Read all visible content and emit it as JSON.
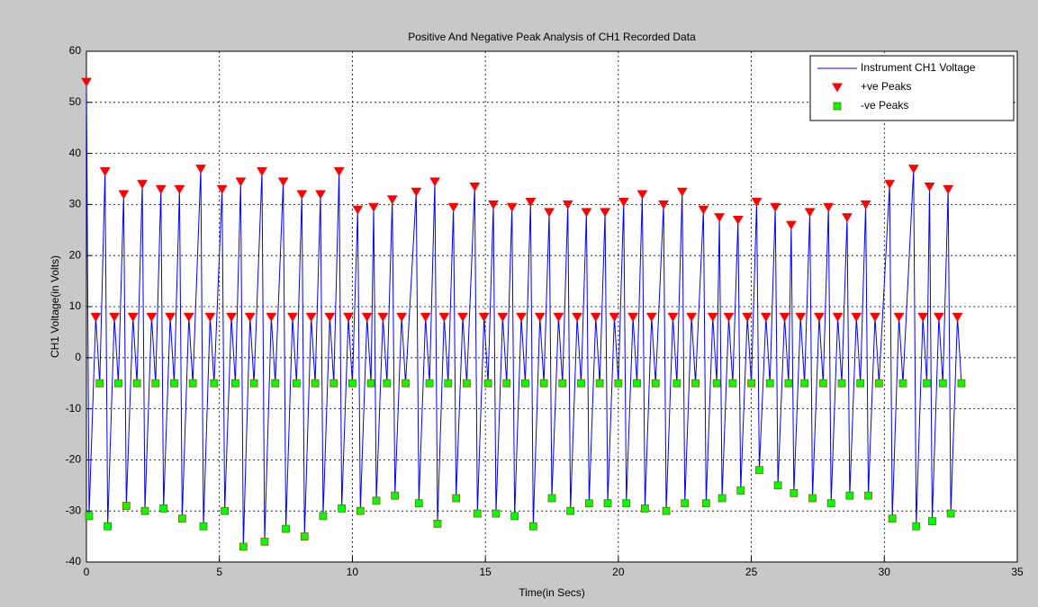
{
  "chart_data": {
    "type": "line",
    "title": "Positive And Negative Peak Analysis of CH1 Recorded Data",
    "xlabel": "Time(in Secs)",
    "ylabel": "CH1 Voltage(in Volts)",
    "xlim": [
      0,
      35
    ],
    "xticks": [
      0,
      5,
      10,
      15,
      20,
      25,
      30,
      35
    ],
    "ylim": [
      -40,
      60
    ],
    "yticks": [
      -40,
      -30,
      -20,
      -10,
      0,
      10,
      20,
      30,
      40,
      50,
      60
    ],
    "grid": true,
    "legend": "upper right",
    "series": [
      {
        "name": "Instrument CH1 Voltage",
        "color": "#0000ff",
        "style": "line",
        "x": [
          0,
          0.1,
          0.35,
          0.5,
          0.7,
          0.8,
          1.05,
          1.2,
          1.4,
          1.5,
          1.75,
          1.9,
          2.1,
          2.2,
          2.45,
          2.6,
          2.8,
          2.9,
          3.15,
          3.3,
          3.5,
          3.6,
          3.85,
          4,
          4.3,
          4.4,
          4.65,
          4.8,
          5.1,
          5.2,
          5.45,
          5.6,
          5.8,
          5.9,
          6.15,
          6.3,
          6.6,
          6.7,
          6.95,
          7.1,
          7.4,
          7.5,
          7.75,
          7.9,
          8.1,
          8.2,
          8.45,
          8.6,
          8.8,
          8.9,
          9.15,
          9.3,
          9.5,
          9.6,
          9.85,
          10,
          10.2,
          10.3,
          10.55,
          10.7,
          10.8,
          10.9,
          11.15,
          11.3,
          11.5,
          11.6,
          11.85,
          12,
          12.4,
          12.5,
          12.75,
          12.9,
          13.1,
          13.2,
          13.45,
          13.6,
          13.8,
          13.9,
          14.15,
          14.3,
          14.6,
          14.7,
          14.95,
          15.1,
          15.3,
          15.4,
          15.65,
          15.8,
          16,
          16.1,
          16.35,
          16.5,
          16.7,
          16.8,
          17.05,
          17.2,
          17.4,
          17.5,
          17.75,
          17.9,
          18.1,
          18.2,
          18.45,
          18.6,
          18.8,
          18.9,
          19.15,
          19.3,
          19.5,
          19.6,
          19.85,
          20,
          20.2,
          20.3,
          20.55,
          20.7,
          20.9,
          21,
          21.25,
          21.4,
          21.7,
          21.8,
          22.05,
          22.2,
          22.4,
          22.5,
          22.75,
          22.9,
          23.2,
          23.3,
          23.55,
          23.7,
          23.8,
          23.9,
          24.15,
          24.3,
          24.5,
          24.6,
          24.85,
          25,
          25.2,
          25.3,
          25.55,
          25.7,
          25.9,
          26,
          26.25,
          26.4,
          26.5,
          26.6,
          26.85,
          27,
          27.2,
          27.3,
          27.55,
          27.7,
          27.9,
          28,
          28.25,
          28.4,
          28.6,
          28.7,
          28.95,
          29.1,
          29.3,
          29.4,
          29.65,
          29.8,
          30.2,
          30.3,
          30.55,
          30.7,
          31.1,
          31.2,
          31.45,
          31.6,
          31.7,
          31.8,
          32.05,
          32.2,
          32.4,
          32.5,
          32.75,
          32.9
        ],
        "values": [
          54,
          -31,
          8,
          -5,
          36.5,
          -33,
          8,
          -5,
          32,
          -29,
          8,
          -5,
          34,
          -30,
          8,
          -5,
          33,
          -29.5,
          8,
          -5,
          33,
          -31.5,
          8,
          -5,
          37,
          -33,
          8,
          -5,
          33,
          -30,
          8,
          -5,
          34.5,
          -37,
          8,
          -5,
          36.5,
          -36,
          8,
          -5,
          34.5,
          -33.5,
          8,
          -5,
          32,
          -35,
          8,
          -5,
          32,
          -31,
          8,
          -5,
          36.5,
          -29.5,
          8,
          -5,
          29,
          -30,
          8,
          -5,
          29.5,
          -28,
          8,
          -5,
          31,
          -27,
          8,
          -5,
          32.5,
          -28.5,
          8,
          -5,
          34.5,
          -32.5,
          8,
          -5,
          29.5,
          -27.5,
          8,
          -5,
          33.5,
          -30.5,
          8,
          -5,
          30,
          -30.5,
          8,
          -5,
          29.5,
          -31,
          8,
          -5,
          30.5,
          -33,
          8,
          -5,
          28.5,
          -27.5,
          8,
          -5,
          30,
          -30,
          8,
          -5,
          28.5,
          -28.5,
          8,
          -5,
          28.5,
          -28.5,
          8,
          -5,
          30.5,
          -28.5,
          8,
          -5,
          32,
          -29.5,
          8,
          -5,
          30,
          -30,
          8,
          -5,
          32.5,
          -28.5,
          8,
          -5,
          29,
          -28.5,
          8,
          -5,
          27.5,
          -27.5,
          8,
          -5,
          27,
          -26,
          8,
          -5,
          30.5,
          -22,
          8,
          -5,
          29.5,
          -25,
          8,
          -5,
          26,
          -26.5,
          8,
          -5,
          28.5,
          -27.5,
          8,
          -5,
          29.5,
          -28.5,
          8,
          -5,
          27.5,
          -27,
          8,
          -5,
          30,
          -27,
          8,
          -5,
          34,
          -31.5,
          8,
          -5,
          37,
          -33,
          8,
          -5,
          33.5,
          -32,
          8,
          -5,
          33,
          -30.5,
          8,
          -5
        ]
      },
      {
        "name": "+ve Peaks",
        "color": "#ff0000",
        "style": "triangle-down",
        "x": [
          0,
          0.35,
          0.7,
          1.05,
          1.4,
          1.75,
          2.1,
          2.45,
          2.8,
          3.15,
          3.5,
          3.85,
          4.3,
          4.65,
          5.1,
          5.45,
          5.8,
          6.15,
          6.6,
          6.95,
          7.4,
          7.75,
          8.1,
          8.45,
          8.8,
          9.15,
          9.5,
          9.85,
          10.2,
          10.55,
          10.8,
          11.15,
          11.5,
          11.85,
          12.4,
          12.75,
          13.1,
          13.45,
          13.8,
          14.15,
          14.6,
          14.95,
          15.3,
          15.65,
          16,
          16.35,
          16.7,
          17.05,
          17.4,
          17.75,
          18.1,
          18.45,
          18.8,
          19.15,
          19.5,
          19.85,
          20.2,
          20.55,
          20.9,
          21.25,
          21.7,
          22.05,
          22.4,
          22.75,
          23.2,
          23.55,
          23.8,
          24.15,
          24.5,
          24.85,
          25.2,
          25.55,
          25.9,
          26.25,
          26.5,
          26.85,
          27.2,
          27.55,
          27.9,
          28.25,
          28.6,
          28.95,
          29.3,
          29.65,
          30.2,
          30.55,
          31.1,
          31.45,
          31.7,
          32.05,
          32.4,
          32.75
        ],
        "values": [
          54,
          8,
          36.5,
          8,
          32,
          8,
          34,
          8,
          33,
          8,
          33,
          8,
          37,
          8,
          33,
          8,
          34.5,
          8,
          36.5,
          8,
          34.5,
          8,
          32,
          8,
          32,
          8,
          36.5,
          8,
          29,
          8,
          29.5,
          8,
          31,
          8,
          32.5,
          8,
          34.5,
          8,
          29.5,
          8,
          33.5,
          8,
          30,
          8,
          29.5,
          8,
          30.5,
          8,
          28.5,
          8,
          30,
          8,
          28.5,
          8,
          28.5,
          8,
          30.5,
          8,
          32,
          8,
          30,
          8,
          32.5,
          8,
          29,
          8,
          27.5,
          8,
          27,
          8,
          30.5,
          8,
          29.5,
          8,
          26,
          8,
          28.5,
          8,
          29.5,
          8,
          27.5,
          8,
          30,
          8,
          34,
          8,
          37,
          8,
          33.5,
          8,
          33,
          8
        ]
      },
      {
        "name": "-ve Peaks",
        "color": "#00ff00",
        "style": "square",
        "x": [
          0.1,
          0.5,
          0.8,
          1.2,
          1.5,
          1.9,
          2.2,
          2.6,
          2.9,
          3.3,
          3.6,
          4,
          4.4,
          4.8,
          5.2,
          5.6,
          5.9,
          6.3,
          6.7,
          7.1,
          7.5,
          7.9,
          8.2,
          8.6,
          8.9,
          9.3,
          9.6,
          10,
          10.3,
          10.7,
          10.9,
          11.3,
          11.6,
          12,
          12.5,
          12.9,
          13.2,
          13.6,
          13.9,
          14.3,
          14.7,
          15.1,
          15.4,
          15.8,
          16.1,
          16.5,
          16.8,
          17.2,
          17.5,
          17.9,
          18.2,
          18.6,
          18.9,
          19.3,
          19.6,
          20,
          20.3,
          20.7,
          21,
          21.4,
          21.8,
          22.2,
          22.5,
          22.9,
          23.3,
          23.7,
          23.9,
          24.3,
          24.6,
          25,
          25.3,
          25.7,
          26,
          26.4,
          26.6,
          27,
          27.3,
          27.7,
          28,
          28.4,
          28.7,
          29.1,
          29.4,
          29.8,
          30.3,
          30.7,
          31.2,
          31.6,
          31.8,
          32.2,
          32.5,
          32.9
        ],
        "values": [
          -31,
          -5,
          -33,
          -5,
          -29,
          -5,
          -30,
          -5,
          -29.5,
          -5,
          -31.5,
          -5,
          -33,
          -5,
          -30,
          -5,
          -37,
          -5,
          -36,
          -5,
          -33.5,
          -5,
          -35,
          -5,
          -31,
          -5,
          -29.5,
          -5,
          -30,
          -5,
          -28,
          -5,
          -27,
          -5,
          -28.5,
          -5,
          -32.5,
          -5,
          -27.5,
          -5,
          -30.5,
          -5,
          -30.5,
          -5,
          -31,
          -5,
          -33,
          -5,
          -27.5,
          -5,
          -30,
          -5,
          -28.5,
          -5,
          -28.5,
          -5,
          -28.5,
          -5,
          -29.5,
          -5,
          -30,
          -5,
          -28.5,
          -5,
          -28.5,
          -5,
          -27.5,
          -5,
          -26,
          -5,
          -22,
          -5,
          -25,
          -5,
          -26.5,
          -5,
          -27.5,
          -5,
          -28.5,
          -5,
          -27,
          -5,
          -27,
          -5,
          -31.5,
          -5,
          -33,
          -5,
          -32,
          -5,
          -30.5,
          -5
        ]
      }
    ]
  }
}
